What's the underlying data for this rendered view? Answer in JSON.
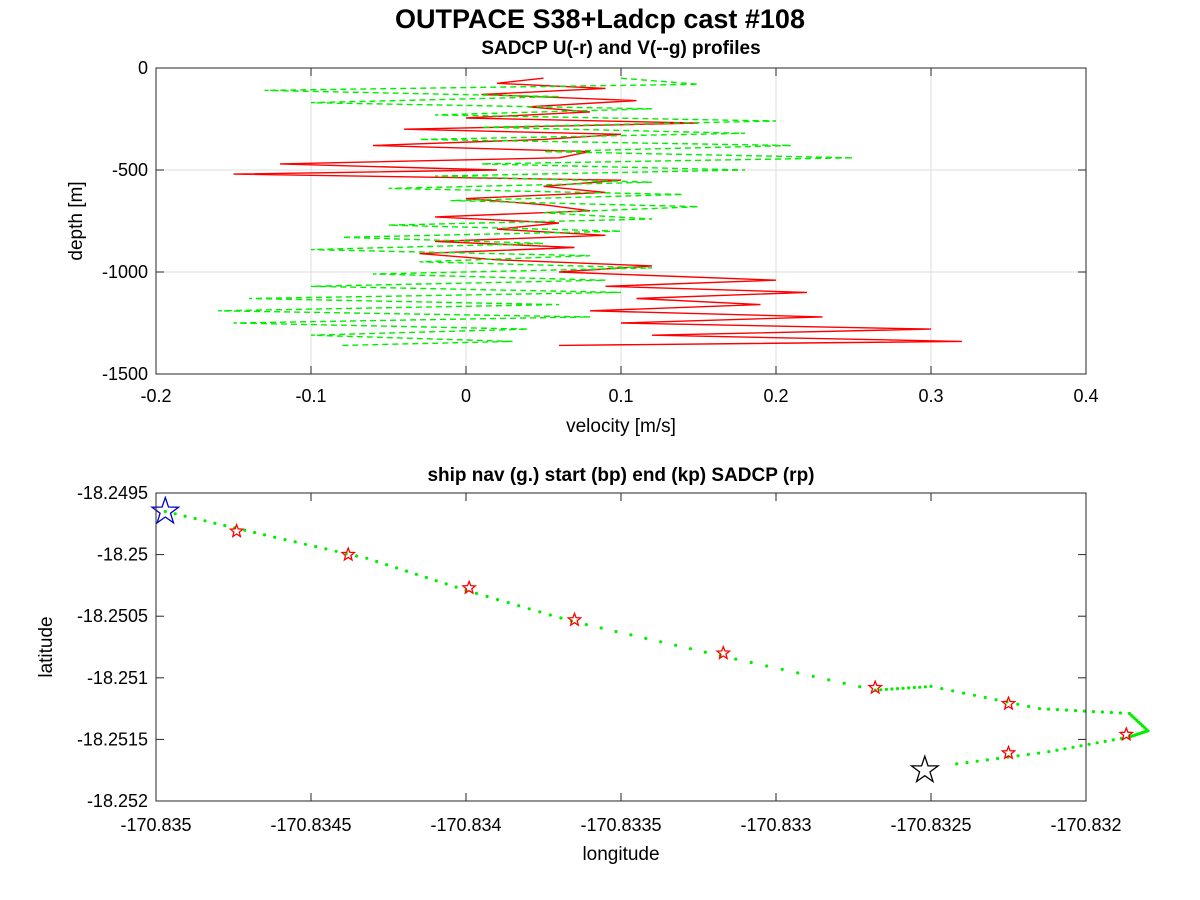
{
  "figure_title": "OUTPACE S38+Ladcp cast #108",
  "chart_data": [
    {
      "type": "line",
      "title": "SADCP U(-r) and V(--g) profiles",
      "xlabel": "velocity [m/s]",
      "ylabel": "depth [m]",
      "xlim": [
        -0.2,
        0.4
      ],
      "ylim": [
        -1500,
        0
      ],
      "xticks": [
        -0.2,
        -0.1,
        0,
        0.1,
        0.2,
        0.3,
        0.4
      ],
      "xtick_labels": [
        "-0.2",
        "-0.1",
        "0",
        "0.1",
        "0.2",
        "0.3",
        "0.4"
      ],
      "yticks": [
        0,
        -500,
        -1000,
        -1500
      ],
      "ytick_labels": [
        "0",
        "-500",
        "-1000",
        "-1500"
      ],
      "grid": true,
      "series": [
        {
          "label": "U(-r)",
          "color": "#ff0000",
          "style": "solid",
          "depth": [
            -50,
            -75,
            -100,
            -130,
            -160,
            -190,
            -215,
            -245,
            -270,
            -300,
            -325,
            -350,
            -380,
            -410,
            -440,
            -470,
            -500,
            -520,
            -550,
            -580,
            -610,
            -640,
            -670,
            -700,
            -730,
            -760,
            -790,
            -820,
            -850,
            -880,
            -910,
            -940,
            -970,
            -1000,
            -1040,
            -1070,
            -1100,
            -1130,
            -1160,
            -1190,
            -1220,
            -1250,
            -1280,
            -1310,
            -1340,
            -1360
          ],
          "values": [
            0.05,
            0.02,
            0.09,
            0.01,
            0.11,
            0.04,
            0.08,
            0.0,
            0.15,
            -0.04,
            0.1,
            0.05,
            -0.06,
            0.08,
            0.06,
            -0.12,
            0.02,
            -0.15,
            0.1,
            0.05,
            0.09,
            0.0,
            0.05,
            0.08,
            -0.02,
            0.06,
            0.02,
            0.09,
            -0.02,
            0.07,
            -0.03,
            0.02,
            0.12,
            0.06,
            0.2,
            0.09,
            0.22,
            0.11,
            0.19,
            0.08,
            0.23,
            0.1,
            0.3,
            0.12,
            0.32,
            0.06
          ]
        },
        {
          "label": "V(--g)",
          "color": "#00ee00",
          "style": "dashed",
          "depth": [
            -50,
            -80,
            -110,
            -140,
            -170,
            -200,
            -230,
            -260,
            -290,
            -320,
            -350,
            -380,
            -410,
            -440,
            -470,
            -500,
            -530,
            -560,
            -590,
            -620,
            -650,
            -680,
            -710,
            -740,
            -770,
            -800,
            -830,
            -860,
            -890,
            -920,
            -950,
            -980,
            -1010,
            -1040,
            -1070,
            -1100,
            -1130,
            -1160,
            -1190,
            -1220,
            -1250,
            -1280,
            -1310,
            -1340,
            -1360
          ],
          "values": [
            0.1,
            0.15,
            -0.13,
            0.06,
            -0.1,
            0.12,
            -0.02,
            0.2,
            0.01,
            0.18,
            -0.03,
            0.21,
            0.05,
            0.25,
            0.01,
            0.18,
            -0.02,
            0.12,
            -0.05,
            0.14,
            -0.01,
            0.15,
            0.05,
            0.12,
            -0.05,
            0.1,
            -0.08,
            0.05,
            -0.1,
            0.08,
            -0.03,
            0.12,
            -0.06,
            0.09,
            -0.1,
            0.1,
            -0.14,
            0.06,
            -0.16,
            0.08,
            -0.15,
            0.04,
            -0.1,
            0.03,
            -0.08
          ]
        }
      ]
    },
    {
      "type": "scatter",
      "title": "ship nav (g.) start (bp) end (kp) SADCP (rp)",
      "xlabel": "longitude",
      "ylabel": "latitude",
      "xlim": [
        -170.835,
        -170.832
      ],
      "ylim": [
        -18.252,
        -18.2495
      ],
      "xticks": [
        -170.835,
        -170.8345,
        -170.834,
        -170.8335,
        -170.833,
        -170.8325,
        -170.832
      ],
      "xtick_labels": [
        "-170.835",
        "-170.8345",
        "-170.834",
        "-170.8335",
        "-170.833",
        "-170.8325",
        "-170.832"
      ],
      "yticks": [
        -18.2495,
        -18.25,
        -18.2505,
        -18.251,
        -18.2515,
        -18.252
      ],
      "ytick_labels": [
        "-18.2495",
        "-18.25",
        "-18.2505",
        "-18.251",
        "-18.2515",
        "-18.252"
      ],
      "grid": false,
      "ship_nav_path": {
        "color": "#00ee00",
        "x": [
          -170.83497,
          -170.83465,
          -170.83432,
          -170.834,
          -170.83366,
          -170.83318,
          -170.83268,
          -170.8325,
          -170.83215,
          -170.83186,
          -170.8318,
          -170.83186,
          -170.83212,
          -170.83245
        ],
        "y": [
          -18.24965,
          -18.24984,
          -18.25003,
          -18.25029,
          -18.25054,
          -18.25082,
          -18.2511,
          -18.25107,
          -18.25125,
          -18.25129,
          -18.25143,
          -18.25148,
          -18.2516,
          -18.25171
        ]
      },
      "start": {
        "label": "start (bp)",
        "lon": -170.83497,
        "lat": -18.24965,
        "color": "#0000c8"
      },
      "end": {
        "label": "end (kp)",
        "lon": -170.83252,
        "lat": -18.25175,
        "color": "#000000"
      },
      "sadcp_points": {
        "color": "#ff0000",
        "lon": [
          -170.83474,
          -170.83438,
          -170.83399,
          -170.83365,
          -170.83317,
          -170.83268,
          -170.83225,
          -170.83187,
          -170.83225
        ],
        "lat": [
          -18.24981,
          -18.25,
          -18.25027,
          -18.25053,
          -18.2508,
          -18.25108,
          -18.25121,
          -18.25146,
          -18.25161
        ]
      }
    }
  ]
}
